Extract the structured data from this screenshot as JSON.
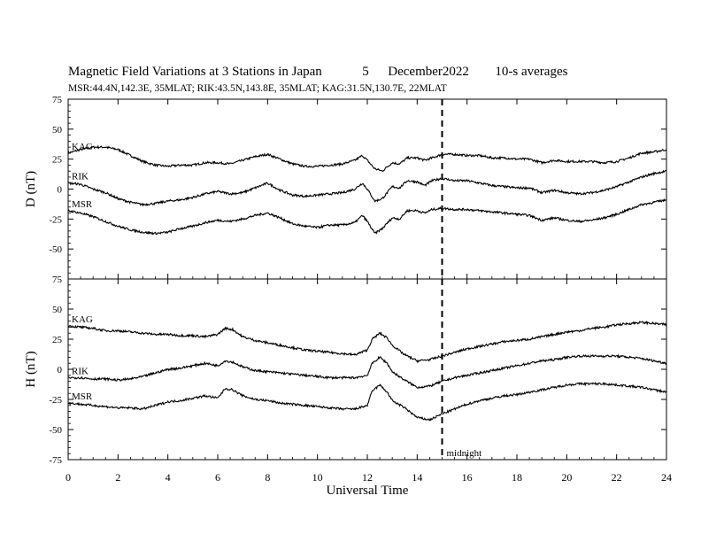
{
  "header": {
    "title": "Magnetic Field Variations at 3 Stations in Japan",
    "date_day": "5",
    "date_month_year": "December2022",
    "averaging": "10-s averages",
    "stations_line": "MSR:44.4N,142.3E, 35MLAT;  RIK:43.5N,143.8E, 35MLAT;  KAG:31.5N,130.7E, 22MLAT"
  },
  "chart_data": [
    {
      "type": "line",
      "panel": "D",
      "ylabel": "D (nT)",
      "xlabel": "Universal Time",
      "xlim": [
        0,
        24
      ],
      "ylim": [
        -75,
        75
      ],
      "yticks": [
        -75,
        -50,
        -25,
        0,
        25,
        50,
        75
      ],
      "xticks": [
        0,
        2,
        4,
        6,
        8,
        10,
        12,
        14,
        16,
        18,
        20,
        22,
        24
      ],
      "annotation": {
        "label": "midnight",
        "x": 15
      },
      "x": [
        0,
        0.5,
        1,
        1.5,
        2,
        2.5,
        3,
        3.5,
        4,
        4.5,
        5,
        5.5,
        6,
        6.5,
        7,
        7.5,
        8,
        8.5,
        9,
        9.5,
        10,
        10.5,
        11,
        11.5,
        11.8,
        12,
        12.3,
        12.6,
        13,
        13.3,
        13.6,
        14,
        14.3,
        14.6,
        15,
        15.5,
        16,
        16.5,
        17,
        17.5,
        18,
        18.5,
        19,
        19.5,
        20,
        20.5,
        21,
        21.5,
        22,
        22.5,
        23,
        23.5,
        24
      ],
      "series": [
        {
          "name": "KAG",
          "values": [
            30,
            33,
            35,
            35,
            33,
            28,
            23,
            20,
            19,
            20,
            20,
            22,
            22,
            21,
            24,
            27,
            29,
            25,
            21,
            19,
            19,
            20,
            21,
            24,
            28,
            24,
            17,
            15,
            22,
            21,
            26,
            26,
            24,
            26,
            29,
            29,
            28,
            28,
            26,
            26,
            25,
            25,
            22,
            24,
            23,
            23,
            23,
            22,
            23,
            26,
            30,
            31,
            33
          ]
        },
        {
          "name": "RIK",
          "values": [
            5,
            4,
            0,
            -3,
            -8,
            -11,
            -13,
            -12,
            -10,
            -9,
            -7,
            -4,
            -2,
            -4,
            -3,
            1,
            5,
            -1,
            -5,
            -6,
            -5,
            -4,
            -3,
            0,
            5,
            0,
            -10,
            -8,
            2,
            1,
            7,
            6,
            3,
            7,
            9,
            7,
            7,
            5,
            3,
            2,
            1,
            1,
            -3,
            -1,
            -3,
            -4,
            -3,
            -1,
            2,
            6,
            10,
            13,
            15
          ]
        },
        {
          "name": "MSR",
          "values": [
            -18,
            -20,
            -23,
            -27,
            -31,
            -34,
            -36,
            -37,
            -36,
            -33,
            -31,
            -28,
            -26,
            -27,
            -25,
            -22,
            -20,
            -24,
            -29,
            -31,
            -32,
            -30,
            -30,
            -28,
            -22,
            -27,
            -37,
            -33,
            -24,
            -25,
            -18,
            -18,
            -20,
            -17,
            -16,
            -17,
            -17,
            -18,
            -19,
            -20,
            -21,
            -22,
            -26,
            -24,
            -26,
            -27,
            -26,
            -24,
            -21,
            -17,
            -13,
            -11,
            -9
          ]
        }
      ]
    },
    {
      "type": "line",
      "panel": "H",
      "ylabel": "H (nT)",
      "xlabel": "Universal Time",
      "xlim": [
        0,
        24
      ],
      "ylim": [
        -75,
        75
      ],
      "yticks": [
        -75,
        -50,
        -25,
        0,
        25,
        50,
        75
      ],
      "xticks": [
        0,
        2,
        4,
        6,
        8,
        10,
        12,
        14,
        16,
        18,
        20,
        22,
        24
      ],
      "annotation": {
        "label": "midnight",
        "x": 15
      },
      "x": [
        0,
        0.5,
        1,
        1.5,
        2,
        2.5,
        3,
        3.5,
        4,
        4.5,
        5,
        5.5,
        6,
        6.3,
        6.6,
        7,
        7.5,
        8,
        8.5,
        9,
        9.5,
        10,
        10.5,
        11,
        11.5,
        12,
        12.2,
        12.5,
        12.8,
        13,
        13.5,
        14,
        14.5,
        15,
        15.5,
        16,
        16.5,
        17,
        17.5,
        18,
        18.5,
        19,
        19.5,
        20,
        20.5,
        21,
        21.5,
        22,
        22.5,
        23,
        23.5,
        24
      ],
      "series": [
        {
          "name": "KAG",
          "values": [
            36,
            35,
            34,
            32,
            32,
            31,
            30,
            29,
            29,
            28,
            28,
            27,
            29,
            34,
            33,
            27,
            24,
            22,
            20,
            18,
            16,
            15,
            14,
            13,
            12,
            16,
            25,
            30,
            26,
            20,
            12,
            7,
            8,
            11,
            14,
            17,
            19,
            21,
            23,
            24,
            25,
            27,
            29,
            31,
            32,
            34,
            35,
            37,
            38,
            39,
            38,
            37
          ]
        },
        {
          "name": "RIK",
          "values": [
            -7,
            -7,
            -8,
            -8,
            -9,
            -8,
            -6,
            -3,
            0,
            1,
            3,
            5,
            3,
            7,
            6,
            2,
            -1,
            -2,
            -3,
            -4,
            -5,
            -6,
            -7,
            -7,
            -7,
            -5,
            5,
            10,
            5,
            -2,
            -9,
            -15,
            -14,
            -10,
            -7,
            -5,
            -3,
            -1,
            1,
            3,
            5,
            7,
            8,
            10,
            11,
            11,
            11,
            11,
            10,
            9,
            7,
            5
          ]
        },
        {
          "name": "MSR",
          "values": [
            -28,
            -29,
            -30,
            -31,
            -32,
            -32,
            -33,
            -30,
            -27,
            -26,
            -24,
            -22,
            -24,
            -16,
            -17,
            -22,
            -25,
            -26,
            -28,
            -29,
            -30,
            -31,
            -32,
            -33,
            -33,
            -30,
            -18,
            -13,
            -19,
            -26,
            -32,
            -40,
            -42,
            -37,
            -33,
            -29,
            -26,
            -24,
            -22,
            -21,
            -19,
            -17,
            -15,
            -13,
            -12,
            -12,
            -12,
            -13,
            -14,
            -15,
            -17,
            -19
          ]
        }
      ]
    }
  ]
}
